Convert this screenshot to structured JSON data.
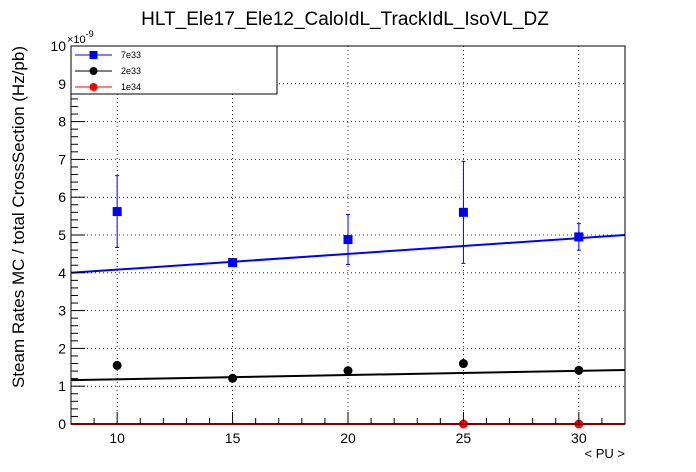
{
  "chart_data": {
    "type": "scatter",
    "title": "HLT_Ele17_Ele12_CaloIdL_TrackIdL_IsoVL_DZ",
    "xlabel": "< PU >",
    "ylabel": "Steam Rates MC / total CrossSection (Hz/pb)",
    "y_multiplier_label": "×10",
    "y_multiplier_exponent": "-9",
    "xlim": [
      8,
      32
    ],
    "ylim": [
      0,
      10
    ],
    "x_ticks": [
      10,
      15,
      20,
      25,
      30
    ],
    "x_tick_labels": [
      "10",
      "15",
      "20",
      "25",
      "30"
    ],
    "y_ticks": [
      0,
      1,
      2,
      3,
      4,
      5,
      6,
      7,
      8,
      9,
      10
    ],
    "y_tick_labels": [
      "0",
      "1",
      "2",
      "3",
      "4",
      "5",
      "6",
      "7",
      "8",
      "9",
      "10"
    ],
    "grid": true,
    "legend_position": "top-left",
    "series": [
      {
        "name": "7e33",
        "color": "#0000ff",
        "marker": "square",
        "x": [
          10,
          15,
          20,
          25,
          30
        ],
        "y": [
          5.62,
          4.27,
          4.88,
          5.6,
          4.95
        ],
        "err": [
          0.95,
          0.06,
          0.66,
          1.35,
          0.35
        ],
        "fit": [
          4.0,
          5.0
        ]
      },
      {
        "name": "2e33",
        "color": "#000000",
        "marker": "circle",
        "x": [
          10,
          15,
          20,
          25,
          30
        ],
        "y": [
          1.55,
          1.21,
          1.41,
          1.6,
          1.42
        ],
        "err": [
          0,
          0,
          0,
          0,
          0
        ],
        "fit": [
          1.16,
          1.43
        ]
      },
      {
        "name": "1e34",
        "color": "#ff0000",
        "marker": "circle",
        "x": [
          25,
          30
        ],
        "y": [
          0.0,
          0.0
        ],
        "err": [
          0,
          0
        ],
        "fit": [
          0.0,
          0.0
        ]
      }
    ]
  }
}
